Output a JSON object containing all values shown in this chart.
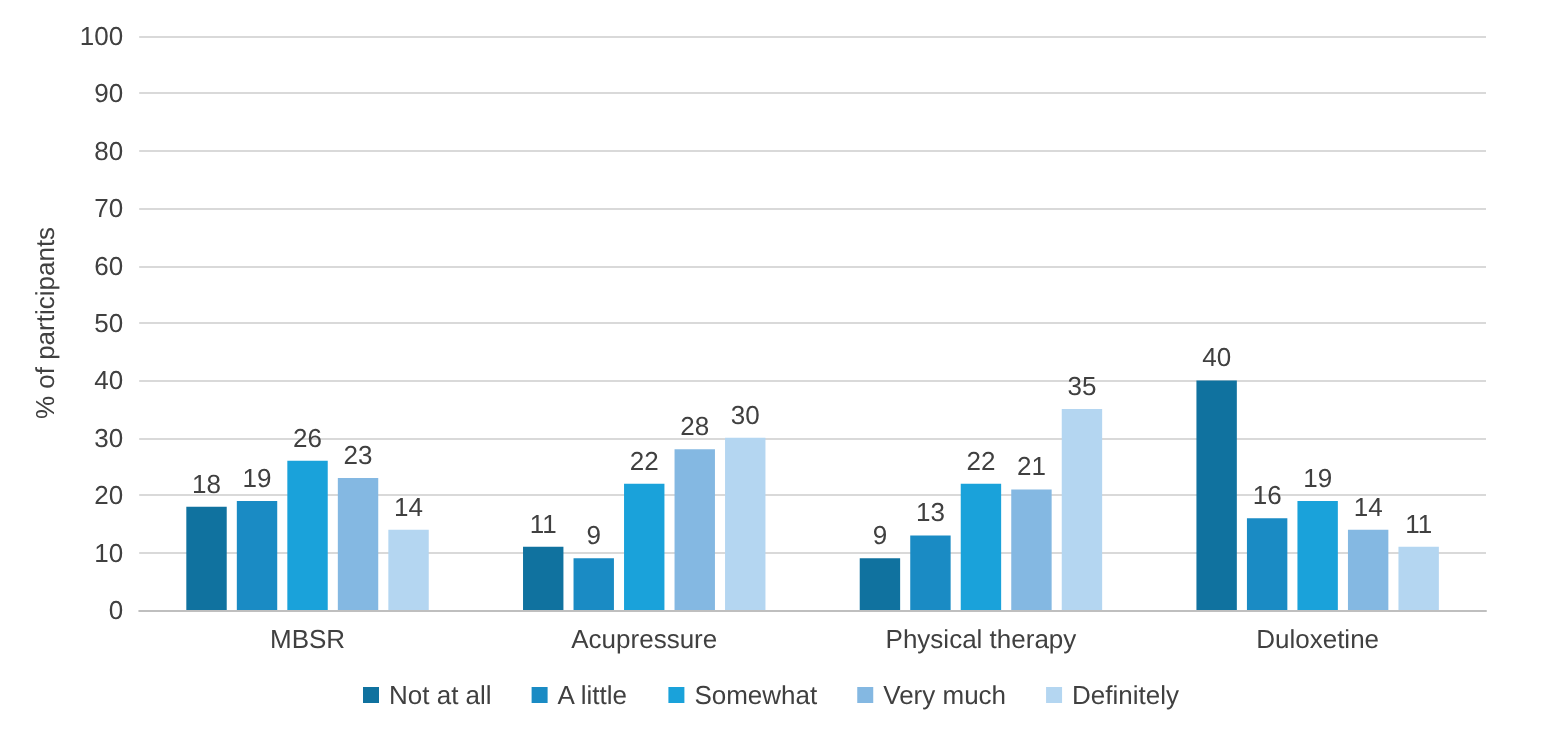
{
  "chart_data": {
    "type": "bar",
    "ylabel": "% of participants",
    "categories": [
      "MBSR",
      "Acupressure",
      "Physical therapy",
      "Duloxetine"
    ],
    "series": [
      {
        "name": "Not at all",
        "color": "#10729f",
        "values": [
          18,
          11,
          9,
          40
        ]
      },
      {
        "name": "A little",
        "color": "#1a8bc4",
        "values": [
          19,
          9,
          13,
          16
        ]
      },
      {
        "name": "Somewhat",
        "color": "#1aa2da",
        "values": [
          26,
          22,
          22,
          19
        ]
      },
      {
        "name": "Very much",
        "color": "#84b8e2",
        "values": [
          23,
          28,
          21,
          14
        ]
      },
      {
        "name": "Definitely",
        "color": "#b4d6f1",
        "values": [
          14,
          30,
          35,
          11
        ]
      }
    ],
    "ylim": [
      0,
      100
    ],
    "yticks": [
      0,
      10,
      20,
      30,
      40,
      50,
      60,
      70,
      80,
      90,
      100
    ],
    "grid": "y",
    "legend": "bottom",
    "data_labels": true
  }
}
